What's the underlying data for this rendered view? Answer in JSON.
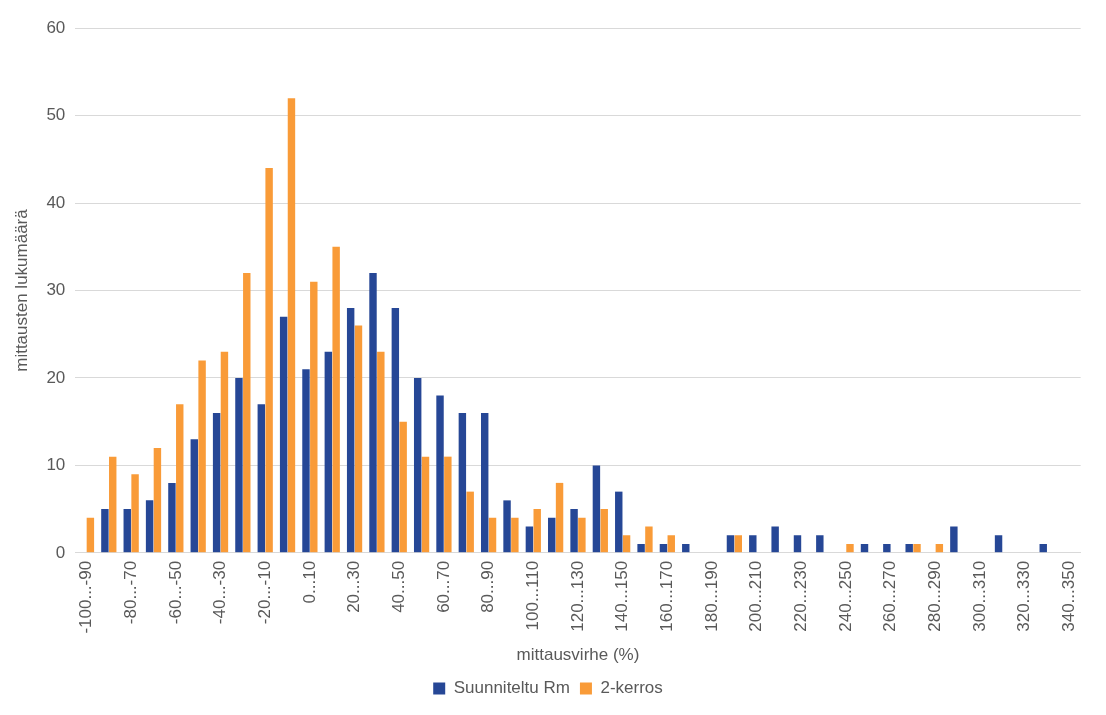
{
  "chart_data": {
    "type": "bar",
    "xlabel": "mittausvirhe (%)",
    "ylabel": "mittausten lukumäärä",
    "categories": [
      "-100...-90",
      null,
      "-80...-70",
      null,
      "-60...-50",
      null,
      "-40...-30",
      null,
      "-20...-10",
      null,
      "0...10",
      null,
      "20...30",
      null,
      "40...50",
      null,
      "60...70",
      null,
      "80...90",
      null,
      "100...110",
      null,
      "120...130",
      null,
      "140...150",
      null,
      "160...170",
      null,
      "180...190",
      null,
      "200...210",
      null,
      "220...230",
      null,
      "240...250",
      null,
      "260...270",
      null,
      "280...290",
      null,
      "300...310",
      null,
      "320...330",
      null,
      "340...350"
    ],
    "series": [
      {
        "name": "Suunniteltu Rm",
        "color": "#264796",
        "values": [
          0,
          5,
          5,
          6,
          8,
          13,
          16,
          20,
          17,
          27,
          21,
          23,
          28,
          32,
          28,
          20,
          18,
          16,
          16,
          6,
          3,
          4,
          5,
          10,
          7,
          1,
          1,
          1,
          0,
          2,
          2,
          3,
          2,
          2,
          0,
          1,
          1,
          1,
          0,
          3,
          0,
          2,
          0,
          1,
          0
        ]
      },
      {
        "name": "2-kerros",
        "color": "#f99b38",
        "values": [
          4,
          11,
          9,
          12,
          17,
          22,
          23,
          32,
          44,
          52,
          31,
          35,
          26,
          23,
          15,
          11,
          11,
          7,
          4,
          4,
          5,
          8,
          4,
          5,
          2,
          3,
          2,
          0,
          0,
          2,
          0,
          0,
          0,
          0,
          1,
          0,
          0,
          1,
          1,
          0,
          0,
          0,
          0,
          0,
          0
        ]
      }
    ],
    "ylim": [
      0,
      60
    ],
    "yticks": [
      0,
      10,
      20,
      30,
      40,
      50,
      60
    ],
    "grid": "y",
    "legend": "bottom"
  }
}
